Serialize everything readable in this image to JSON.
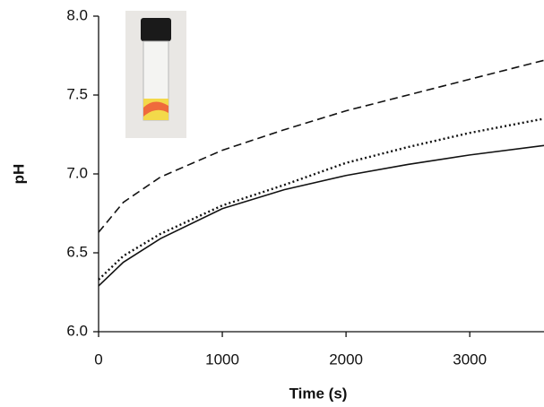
{
  "chart_data": {
    "type": "line",
    "x_label": "Time (s)",
    "y_label": "pH",
    "x": [
      0,
      200,
      500,
      1000,
      1500,
      2000,
      2500,
      3000,
      3600
    ],
    "series": [
      {
        "color": "#111111",
        "dash": "dashed",
        "values": [
          6.63,
          6.82,
          6.98,
          7.15,
          7.28,
          7.4,
          7.5,
          7.6,
          7.72
        ]
      },
      {
        "color": "#111111",
        "dash": "dotted",
        "values": [
          6.33,
          6.48,
          6.62,
          6.8,
          6.93,
          7.07,
          7.17,
          7.26,
          7.35
        ]
      },
      {
        "color": "#111111",
        "dash": "solid",
        "values": [
          6.29,
          6.44,
          6.59,
          6.78,
          6.9,
          6.99,
          7.06,
          7.12,
          7.18
        ]
      }
    ],
    "xlim": [
      0,
      3600
    ],
    "xticks": [
      0,
      1000,
      2000,
      3000
    ],
    "ylim": [
      6,
      8
    ],
    "yticks": [
      {
        "value": 6,
        "label": "6.0"
      },
      6.5,
      {
        "value": 7,
        "label": "7.0"
      },
      7.5,
      {
        "value": 8,
        "label": "8.0"
      }
    ],
    "grid": false
  }
}
